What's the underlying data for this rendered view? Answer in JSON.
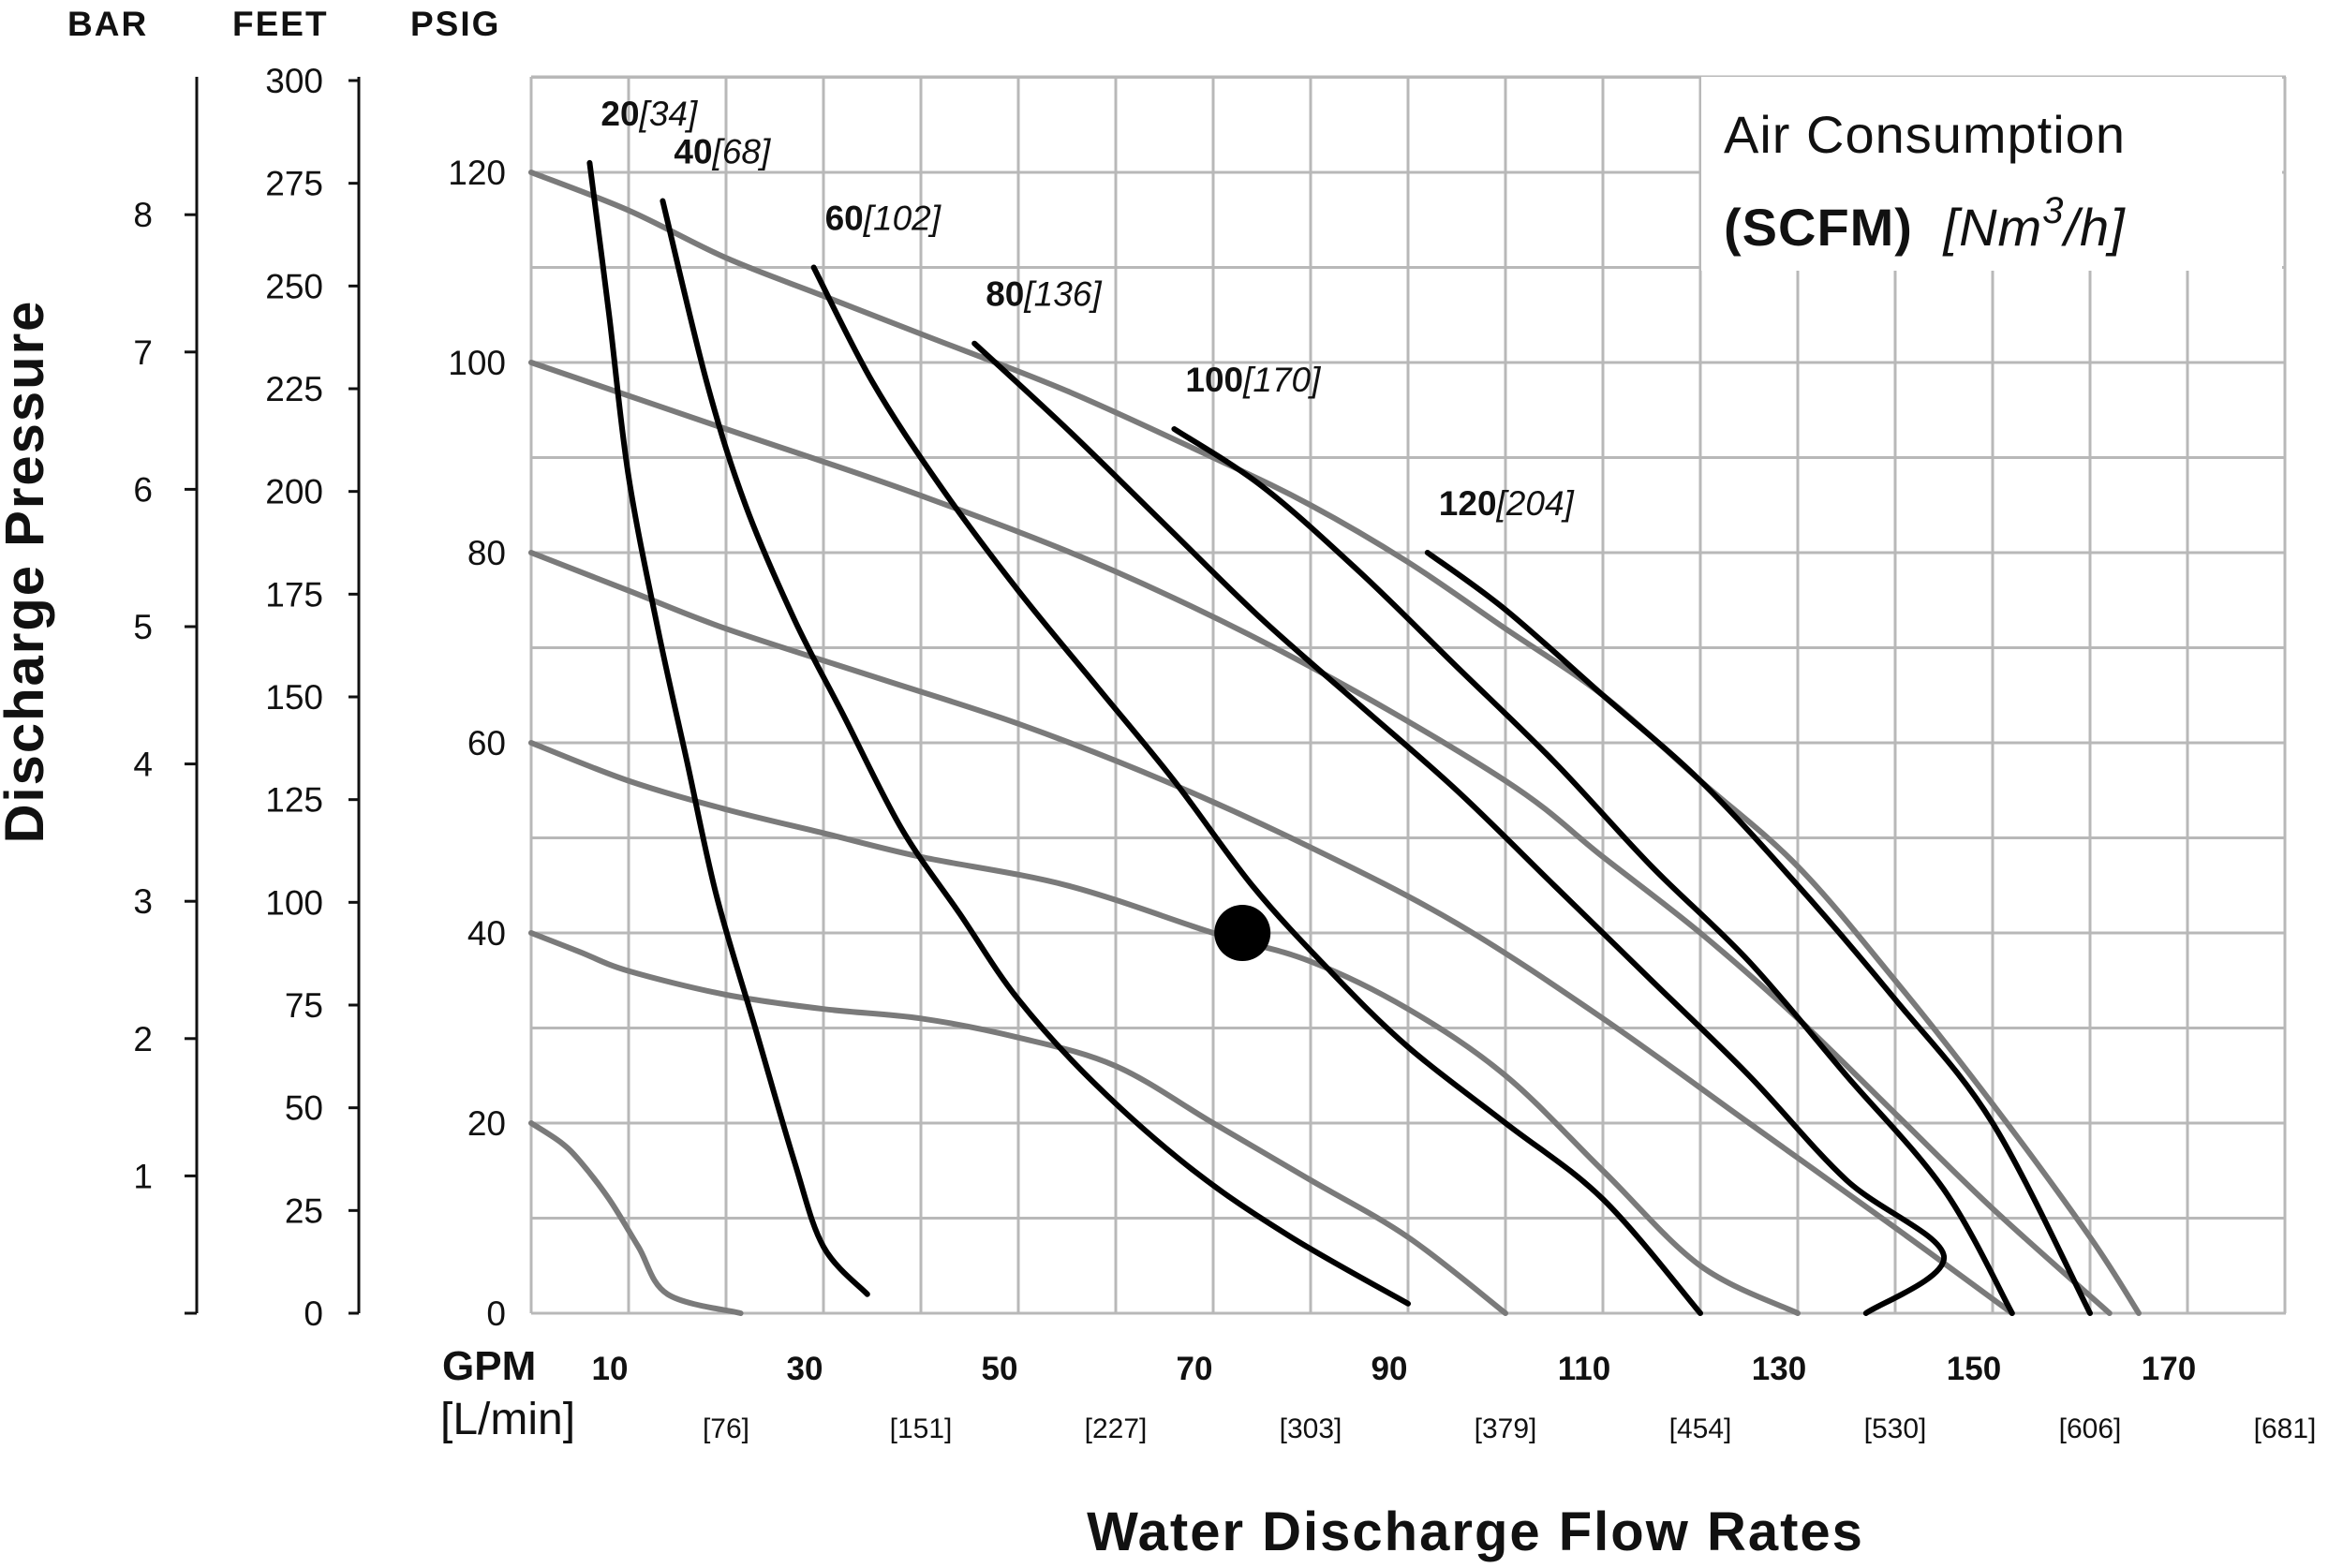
{
  "chart_data": {
    "type": "line",
    "title": "Air Consumption",
    "legend": {
      "line1": "Air Consumption",
      "unit_bold": "(SCFM)",
      "unit_italic_pre": "[Nm",
      "unit_sup": "3",
      "unit_italic_post": "/h]"
    },
    "xlabel": "Water Discharge Flow Rates",
    "ylabel": "Discharge Pressure",
    "x_unit_primary": "GPM",
    "x_unit_secondary": "[L/min]",
    "xlim": [
      0,
      180
    ],
    "ylim": [
      0,
      130
    ],
    "x_ticks": [
      "10",
      "30",
      "50",
      "70",
      "90",
      "110",
      "130",
      "150",
      "170"
    ],
    "x_ticks_lpm": [
      "[76]",
      "[151]",
      "[227]",
      "[303]",
      "[379]",
      "[454]",
      "[530]",
      "[606]",
      "[681]"
    ],
    "y_axis_headers": {
      "bar": "BAR",
      "feet": "FEET",
      "psig": "PSIG"
    },
    "psig_ticks": [
      "0",
      "20",
      "40",
      "60",
      "80",
      "100",
      "120"
    ],
    "feet_ticks": [
      "0",
      "25",
      "50",
      "75",
      "100",
      "125",
      "150",
      "175",
      "200",
      "225",
      "250",
      "275",
      "300"
    ],
    "bar_ticks": [
      "1",
      "2",
      "3",
      "4",
      "5",
      "6",
      "7",
      "8"
    ],
    "grid": true,
    "inlet_pressure_series": [
      {
        "name": "20 psig",
        "points": [
          [
            0,
            20
          ],
          [
            3,
            18
          ],
          [
            5,
            16
          ],
          [
            8,
            12
          ],
          [
            11,
            7
          ],
          [
            14,
            2
          ],
          [
            21.5,
            0
          ]
        ]
      },
      {
        "name": "40 psig",
        "points": [
          [
            0,
            40
          ],
          [
            5,
            38
          ],
          [
            10,
            36
          ],
          [
            20,
            33.5
          ],
          [
            30,
            32
          ],
          [
            40,
            31
          ],
          [
            50,
            29
          ],
          [
            60,
            26
          ],
          [
            70,
            20
          ],
          [
            80,
            14
          ],
          [
            90,
            8
          ],
          [
            100,
            0
          ]
        ]
      },
      {
        "name": "60 psig",
        "points": [
          [
            0,
            60
          ],
          [
            10,
            56
          ],
          [
            20,
            53
          ],
          [
            30,
            50.5
          ],
          [
            40,
            48
          ],
          [
            55,
            45
          ],
          [
            70,
            40
          ],
          [
            80,
            37
          ],
          [
            90,
            32
          ],
          [
            100,
            25
          ],
          [
            110,
            15
          ],
          [
            120,
            5
          ],
          [
            130,
            0
          ]
        ]
      },
      {
        "name": "80 psig",
        "points": [
          [
            0,
            80
          ],
          [
            10,
            76
          ],
          [
            20,
            72
          ],
          [
            35,
            67
          ],
          [
            50,
            62
          ],
          [
            65,
            56
          ],
          [
            80,
            49
          ],
          [
            95,
            41
          ],
          [
            110,
            31
          ],
          [
            125,
            20
          ],
          [
            140,
            9
          ],
          [
            152,
            0
          ]
        ]
      },
      {
        "name": "100 psig",
        "points": [
          [
            0,
            100
          ],
          [
            10,
            96.5
          ],
          [
            20,
            93
          ],
          [
            40,
            86
          ],
          [
            60,
            78
          ],
          [
            80,
            68
          ],
          [
            100,
            56
          ],
          [
            110,
            48
          ],
          [
            120,
            40
          ],
          [
            130,
            31
          ],
          [
            140,
            21
          ],
          [
            150,
            11
          ],
          [
            162,
            0
          ]
        ]
      },
      {
        "name": "120 psig",
        "points": [
          [
            0,
            120
          ],
          [
            10,
            116
          ],
          [
            20,
            111
          ],
          [
            30,
            107
          ],
          [
            40,
            103
          ],
          [
            55,
            97
          ],
          [
            70,
            90
          ],
          [
            80,
            85
          ],
          [
            90,
            79
          ],
          [
            100,
            72
          ],
          [
            110,
            65
          ],
          [
            120,
            56
          ],
          [
            130,
            47
          ],
          [
            140,
            35
          ],
          [
            150,
            22
          ],
          [
            160,
            8
          ],
          [
            165,
            0
          ]
        ]
      }
    ],
    "air_consumption_series": [
      {
        "name": "20",
        "name_metric": "[34]",
        "points": [
          [
            6,
            121
          ],
          [
            8,
            105
          ],
          [
            10,
            88
          ],
          [
            13,
            72
          ],
          [
            16,
            58
          ],
          [
            19,
            44
          ],
          [
            23,
            30
          ],
          [
            27,
            16
          ],
          [
            30,
            7
          ],
          [
            34.5,
            2
          ]
        ]
      },
      {
        "name": "40",
        "name_metric": "[68]",
        "points": [
          [
            13.5,
            117
          ],
          [
            18,
            98
          ],
          [
            22,
            85
          ],
          [
            27,
            73
          ],
          [
            32,
            63
          ],
          [
            38,
            51
          ],
          [
            44,
            42
          ],
          [
            50,
            33
          ],
          [
            58,
            24
          ],
          [
            68,
            15
          ],
          [
            78,
            8
          ],
          [
            90,
            1
          ]
        ]
      },
      {
        "name": "60",
        "name_metric": "[102]",
        "points": [
          [
            29,
            110
          ],
          [
            35,
            98
          ],
          [
            42,
            87
          ],
          [
            50,
            76
          ],
          [
            58,
            66
          ],
          [
            66,
            56
          ],
          [
            74,
            45
          ],
          [
            82,
            36
          ],
          [
            90,
            28
          ],
          [
            100,
            20
          ],
          [
            110,
            12
          ],
          [
            120,
            0
          ]
        ]
      },
      {
        "name": "80",
        "name_metric": "[136]",
        "points": [
          [
            45.5,
            102
          ],
          [
            55,
            93
          ],
          [
            65,
            83
          ],
          [
            75,
            73
          ],
          [
            85,
            64
          ],
          [
            95,
            55
          ],
          [
            105,
            45
          ],
          [
            115,
            35
          ],
          [
            125,
            25
          ],
          [
            135,
            14
          ],
          [
            145,
            6
          ],
          [
            137,
            0
          ]
        ]
      },
      {
        "name": "100",
        "name_metric": "[170]",
        "points": [
          [
            66,
            93
          ],
          [
            75,
            87
          ],
          [
            85,
            78
          ],
          [
            95,
            68
          ],
          [
            105,
            58
          ],
          [
            115,
            47
          ],
          [
            125,
            37
          ],
          [
            135,
            25
          ],
          [
            145,
            13
          ],
          [
            152,
            0
          ]
        ]
      },
      {
        "name": "120",
        "name_metric": "[204]",
        "points": [
          [
            92,
            80
          ],
          [
            100,
            74
          ],
          [
            110,
            65
          ],
          [
            120,
            56
          ],
          [
            130,
            45
          ],
          [
            140,
            33
          ],
          [
            150,
            20
          ],
          [
            160,
            0
          ]
        ]
      }
    ],
    "operating_point": {
      "x": 73,
      "y": 40
    }
  },
  "colors": {
    "grid": "#b8b8b8",
    "gray_curve": "#7a7a7a",
    "black_curve": "#000000",
    "axis": "#111111"
  }
}
